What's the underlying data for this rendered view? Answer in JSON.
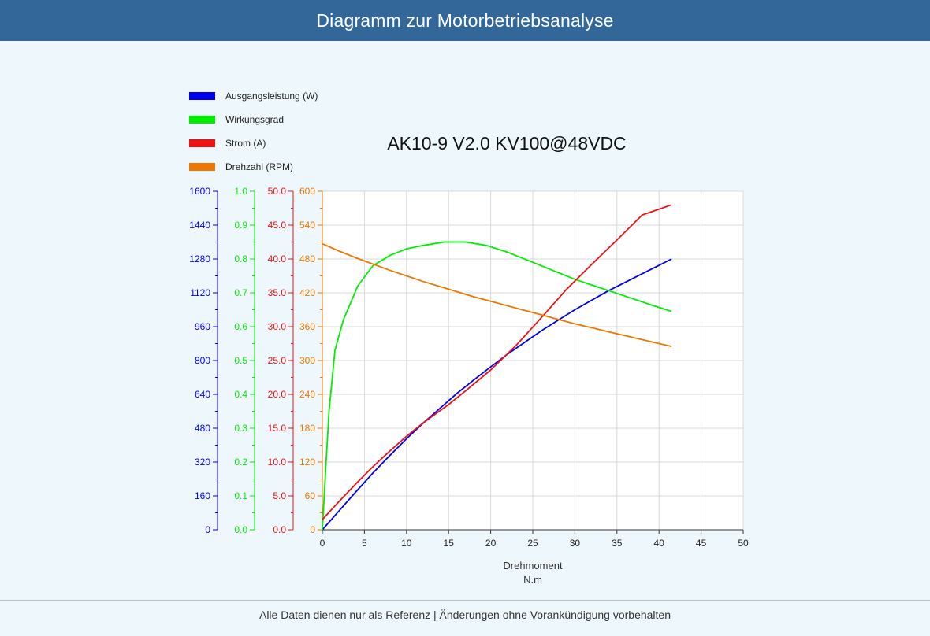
{
  "page": {
    "title": "Diagramm zur Motorbetriebsanalyse",
    "footer": "Alle Daten dienen nur als Referenz | Änderungen ohne Vorankündigung vorbehalten"
  },
  "chart_data": {
    "type": "line",
    "title": "AK10-9 V2.0 KV100@48VDC",
    "xlabel": "Drehmoment",
    "xunit": "N.m",
    "xlim": [
      0,
      50
    ],
    "xticks": [
      0,
      5,
      10,
      15,
      20,
      25,
      30,
      35,
      40,
      45,
      50
    ],
    "grid": true,
    "legend_position": "top-left",
    "axes": [
      {
        "id": "power",
        "color": "#0000ee",
        "lim": [
          0,
          1600
        ],
        "ticks": [
          "0",
          "160",
          "320",
          "480",
          "640",
          "800",
          "960",
          "1120",
          "1280",
          "1440",
          "1600"
        ]
      },
      {
        "id": "eff",
        "color": "#00ee00",
        "lim": [
          0,
          1.0
        ],
        "ticks": [
          "0.0",
          "0.1",
          "0.2",
          "0.3",
          "0.4",
          "0.5",
          "0.6",
          "0.7",
          "0.8",
          "0.9",
          "1.0"
        ]
      },
      {
        "id": "current",
        "color": "#ee1111",
        "lim": [
          0,
          50
        ],
        "ticks": [
          "0.0",
          "5.0",
          "10.0",
          "15.0",
          "20.0",
          "25.0",
          "30.0",
          "35.0",
          "40.0",
          "45.0",
          "50.0"
        ]
      },
      {
        "id": "rpm",
        "color": "#ee7700",
        "lim": [
          0,
          600
        ],
        "ticks": [
          "0",
          "60",
          "120",
          "180",
          "240",
          "300",
          "360",
          "420",
          "480",
          "540",
          "600"
        ]
      }
    ],
    "series": [
      {
        "name": "Ausgangsleistung (W)",
        "color": "#0000ee",
        "axis": "power",
        "x": [
          0,
          2,
          4,
          6,
          8,
          10,
          12,
          14,
          16,
          18,
          20,
          22,
          24,
          26,
          28,
          30,
          32,
          34,
          36,
          38,
          40,
          41.5
        ],
        "y": [
          0,
          90,
          180,
          268,
          350,
          430,
          505,
          575,
          645,
          708,
          770,
          830,
          885,
          940,
          990,
          1040,
          1085,
          1130,
          1170,
          1210,
          1250,
          1280
        ]
      },
      {
        "name": "Wirkungsgrad",
        "color": "#00ee00",
        "axis": "eff",
        "x": [
          0,
          0.4,
          0.8,
          1.5,
          2.5,
          4.2,
          6,
          8,
          10,
          12,
          14.5,
          17,
          19.5,
          22,
          24.5,
          27,
          30,
          33,
          36,
          39,
          41.5
        ],
        "y": [
          0,
          0.18,
          0.35,
          0.53,
          0.62,
          0.72,
          0.78,
          0.81,
          0.83,
          0.84,
          0.85,
          0.85,
          0.84,
          0.82,
          0.795,
          0.77,
          0.74,
          0.715,
          0.69,
          0.665,
          0.645
        ]
      },
      {
        "name": "Strom (A)",
        "color": "#ee1111",
        "axis": "current",
        "x": [
          0,
          2,
          4,
          6,
          8,
          10,
          12,
          15,
          17,
          20,
          23,
          26,
          29,
          32,
          35,
          38,
          41.5
        ],
        "y": [
          1.5,
          4.2,
          6.8,
          9.3,
          11.6,
          13.8,
          15.8,
          18.5,
          20.5,
          23.6,
          27.2,
          31.3,
          35.5,
          39.2,
          42.8,
          46.5,
          48.0
        ]
      },
      {
        "name": "Drehzahl (RPM)",
        "color": "#ee7700",
        "axis": "rpm",
        "x": [
          0,
          2,
          4,
          6,
          8,
          10,
          12,
          14,
          16,
          18,
          20,
          22,
          24,
          26,
          28,
          30,
          32,
          34,
          36,
          38,
          40,
          41.5
        ],
        "y": [
          507,
          494,
          482,
          471,
          460,
          450,
          440,
          431,
          422,
          413,
          405,
          397,
          389,
          381,
          373,
          365,
          358,
          351,
          344,
          337,
          330,
          325
        ]
      }
    ]
  }
}
